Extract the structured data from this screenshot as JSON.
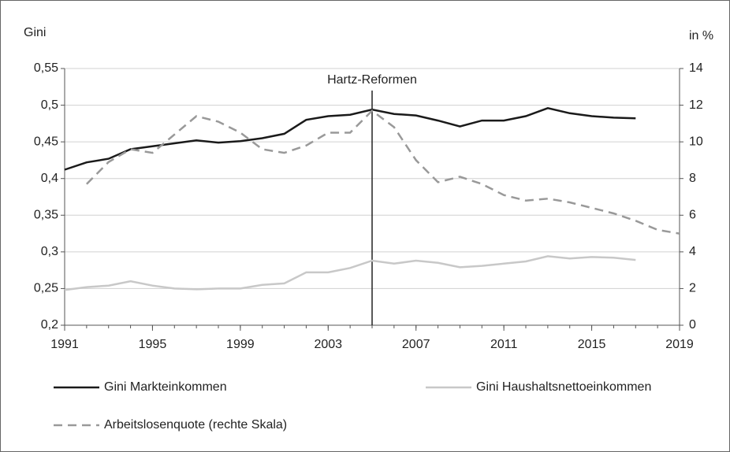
{
  "chart_data": {
    "type": "line",
    "y_label": "Gini",
    "y2_label": "in %",
    "annotation": {
      "x": 2005,
      "text": "Hartz-Reformen"
    },
    "x": [
      1991,
      1992,
      1993,
      1994,
      1995,
      1996,
      1997,
      1998,
      1999,
      2000,
      2001,
      2002,
      2003,
      2004,
      2005,
      2006,
      2007,
      2008,
      2009,
      2010,
      2011,
      2012,
      2013,
      2014,
      2015,
      2016,
      2017,
      2018,
      2019
    ],
    "xlim": [
      1991,
      2019
    ],
    "xticks": [
      1991,
      1995,
      1999,
      2003,
      2007,
      2011,
      2015,
      2019
    ],
    "ylim": [
      0.2,
      0.55
    ],
    "yticks": [
      {
        "value": 0.2,
        "label": "0,2"
      },
      {
        "value": 0.25,
        "label": "0,25"
      },
      {
        "value": 0.3,
        "label": "0,3"
      },
      {
        "value": 0.35,
        "label": "0,35"
      },
      {
        "value": 0.4,
        "label": "0,4"
      },
      {
        "value": 0.45,
        "label": "0,45"
      },
      {
        "value": 0.5,
        "label": "0,5"
      },
      {
        "value": 0.55,
        "label": "0,55"
      }
    ],
    "y2lim": [
      0,
      14
    ],
    "y2ticks": [
      0,
      2,
      4,
      6,
      8,
      10,
      12,
      14
    ],
    "grid": true,
    "series": [
      {
        "name": "Gini Markteinkommen",
        "color": "#1a1a1a",
        "style": "solid",
        "values": [
          0.412,
          0.422,
          0.427,
          0.44,
          0.444,
          0.448,
          0.452,
          0.449,
          0.451,
          0.455,
          0.461,
          0.48,
          0.485,
          0.487,
          0.494,
          0.488,
          0.486,
          0.479,
          0.471,
          0.479,
          0.479,
          0.485,
          0.496,
          0.489,
          0.485,
          0.483,
          0.482,
          null,
          null
        ]
      },
      {
        "name": "Gini Haushaltsnettoeinkommen",
        "color": "#c8c8c8",
        "style": "solid",
        "values": [
          0.248,
          0.252,
          0.254,
          0.26,
          0.254,
          0.25,
          0.249,
          0.25,
          0.25,
          0.255,
          0.257,
          0.272,
          0.272,
          0.278,
          0.288,
          0.284,
          0.288,
          0.285,
          0.279,
          0.281,
          0.284,
          0.287,
          0.294,
          0.291,
          0.293,
          0.292,
          0.289,
          null,
          null
        ]
      },
      {
        "name": "Arbeitslosenquote (rechte Skala)",
        "color": "#999999",
        "style": "dashed",
        "axis": "y2",
        "values": [
          null,
          7.7,
          8.9,
          9.6,
          9.4,
          10.4,
          11.4,
          11.1,
          10.5,
          9.6,
          9.4,
          9.8,
          10.5,
          10.5,
          11.7,
          10.8,
          9.0,
          7.8,
          8.1,
          7.7,
          7.1,
          6.8,
          6.9,
          6.7,
          6.4,
          6.1,
          5.7,
          5.2,
          5.0
        ]
      }
    ]
  }
}
